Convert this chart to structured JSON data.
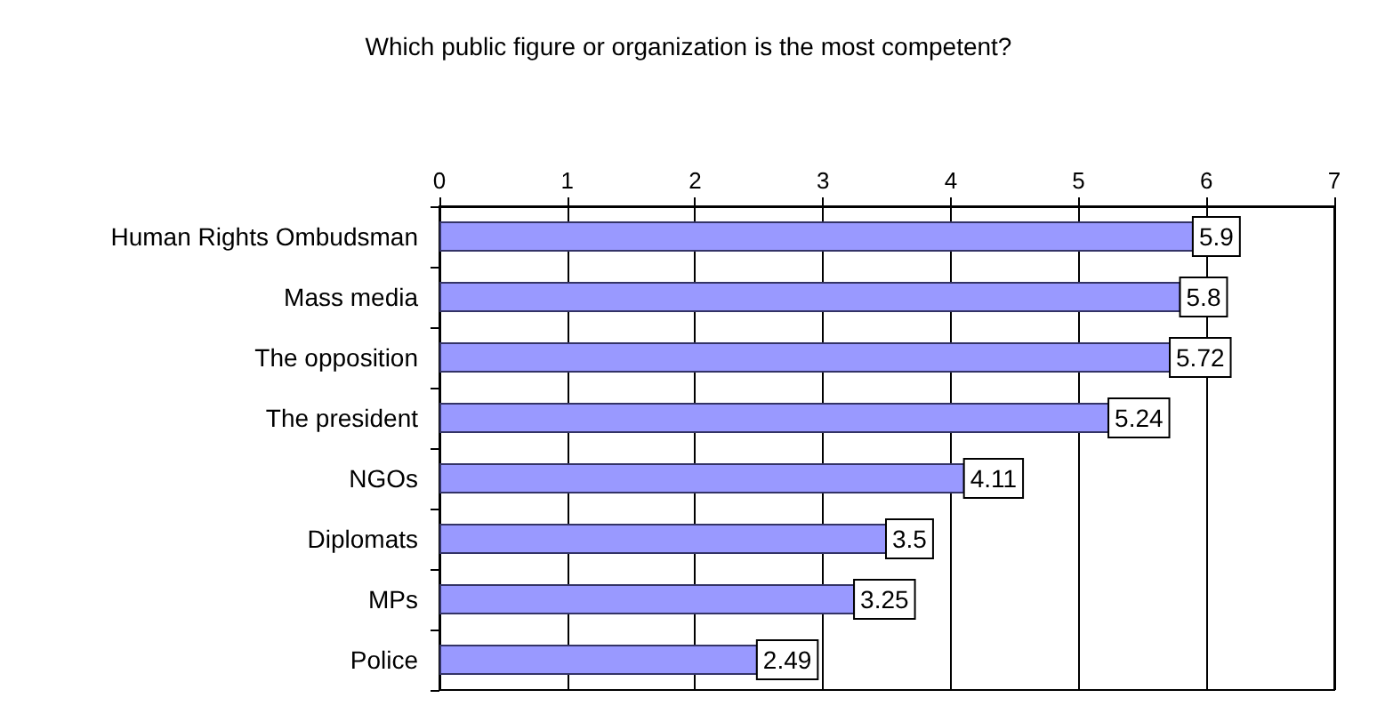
{
  "chart_data": {
    "type": "bar",
    "orientation": "horizontal",
    "title": "Which public figure or organization is the most competent?",
    "categories": [
      "Human Rights Ombudsman",
      "Mass media",
      "The opposition",
      "The president",
      "NGOs",
      "Diplomats",
      "MPs",
      "Police"
    ],
    "values": [
      5.9,
      5.8,
      5.72,
      5.24,
      4.11,
      3.5,
      3.25,
      2.49
    ],
    "color": "#9999ff",
    "xlim": [
      0,
      7
    ],
    "xticks": [
      0,
      1,
      2,
      3,
      4,
      5,
      6,
      7
    ],
    "grid": "x",
    "data_labels": true
  }
}
